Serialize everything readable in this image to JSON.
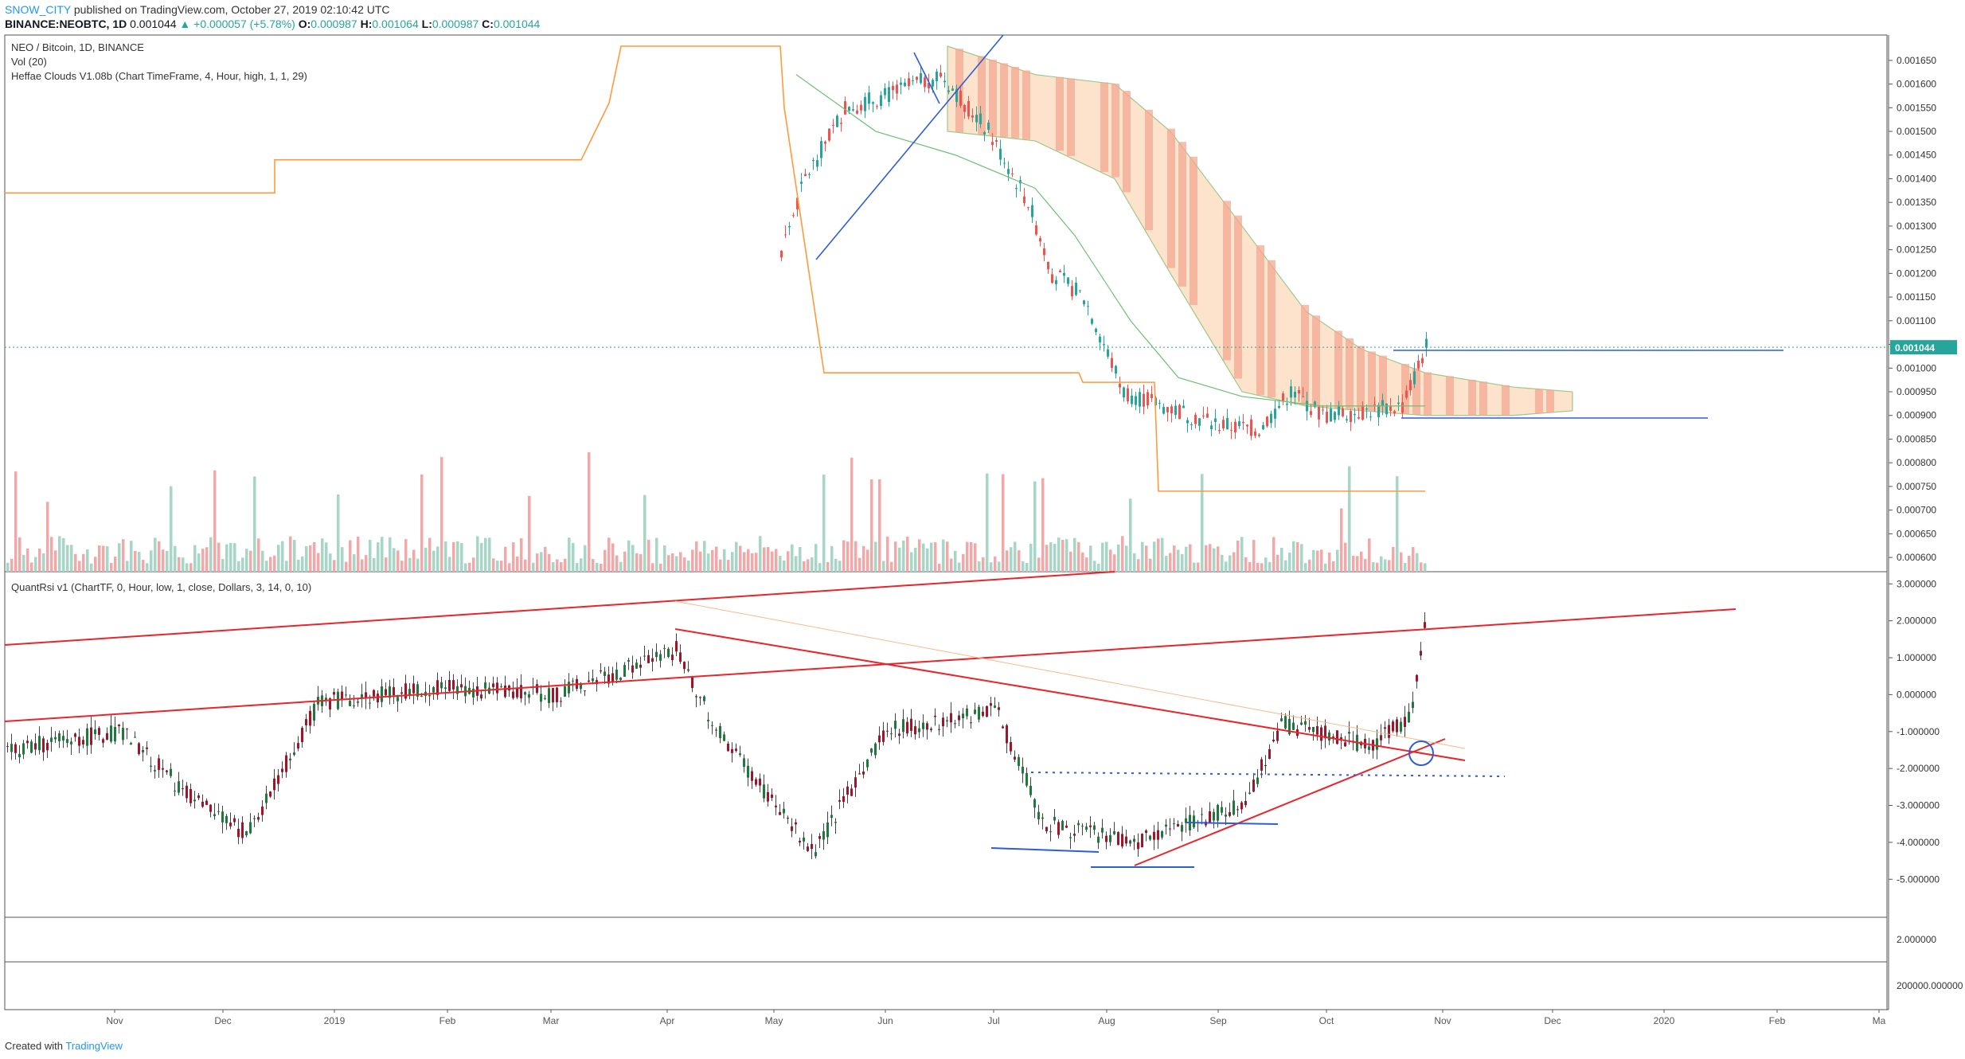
{
  "header": {
    "username": "SNOW_CITY",
    "published": "published on TradingView.com, October 27, 2019 02:10:42 UTC",
    "symbol": "BINANCE:NEOBTC, 1D",
    "last": "0.001044",
    "change": "▲ +0.000057 (+5.78%)",
    "o_label": "O:",
    "o": "0.000987",
    "h_label": "H:",
    "h": "0.001064",
    "l_label": "L:",
    "l": "0.000987",
    "c_label": "C:",
    "c": "0.001044"
  },
  "legend": {
    "title": "NEO / Bitcoin, 1D, BINANCE",
    "vol": "Vol (20)",
    "heffae": "Heffae Clouds V1.08b (Chart TimeFrame, 4, Hour, high, 1, 1, 29)",
    "quant": "QuantRsi v1 (ChartTF, 0, Hour, low, 1, close, Dollars, 3, 14, 0, 10)"
  },
  "footer": {
    "created": "Created with",
    "brand": "TradingView"
  },
  "colors": {
    "up": "#26a69a",
    "down": "#ef5350",
    "vol_up": "#a5d6c6",
    "vol_down": "#f0a8a8",
    "cloud_dark": "#f2a891",
    "cloud_light": "#fde3cc",
    "orange": "#ff9a3c",
    "trend_red": "#e8252b",
    "trend_blue": "#2f5dd6",
    "price_tag": "#26a69a"
  },
  "chart_data": [
    {
      "type": "line",
      "title": "NEO / Bitcoin, 1D, BINANCE",
      "x_ticks": [
        "Nov",
        "Dec",
        "2019",
        "Feb",
        "Mar",
        "Apr",
        "May",
        "Jun",
        "Jul",
        "Aug",
        "Sep",
        "Oct",
        "Nov",
        "Dec",
        "2020",
        "Feb",
        "Ma"
      ],
      "y_ticks": [
        "0.001650",
        "0.001600",
        "0.001550",
        "0.001500",
        "0.001450",
        "0.001400",
        "0.001350",
        "0.001300",
        "0.001250",
        "0.001200",
        "0.001150",
        "0.001100",
        "0.001050",
        "0.001000",
        "0.000950",
        "0.000900",
        "0.000850",
        "0.000800",
        "0.000750",
        "0.000700",
        "0.000650",
        "0.000600"
      ],
      "ylim": [
        0.00058,
        0.00168
      ],
      "last_price_label": "0.001044",
      "last_price": 0.001044,
      "series": [
        {
          "name": "NEO / Bitcoin",
          "x": [
            "2019-05-15",
            "2019-05-25",
            "2019-06-05",
            "2019-06-15",
            "2019-06-25",
            "2019-07-01",
            "2019-07-10",
            "2019-07-20",
            "2019-08-01",
            "2019-08-10",
            "2019-08-20",
            "2019-09-01",
            "2019-09-10",
            "2019-09-20",
            "2019-10-01",
            "2019-10-10",
            "2019-10-20",
            "2019-10-27"
          ],
          "y": [
            0.00125,
            0.0014,
            0.00155,
            0.00158,
            0.00162,
            0.0015,
            0.00135,
            0.0012,
            0.00115,
            0.00095,
            0.00092,
            0.00088,
            0.00087,
            0.00095,
            0.0009,
            0.00091,
            0.00092,
            0.001044
          ]
        }
      ]
    },
    {
      "type": "bar",
      "title": "Vol (20)",
      "note": "volume histogram, unscaled"
    },
    {
      "type": "line",
      "title": "QuantRsi v1 (ChartTF, 0, Hour, low, 1, close, Dollars, 3, 14, 0, 10)",
      "y_ticks": [
        "3.000000",
        "2.000000",
        "1.000000",
        "0.000000",
        "-1.000000",
        "-2.000000",
        "-3.000000",
        "-4.000000",
        "-5.000000"
      ],
      "ylim": [
        -5.9,
        3.2
      ],
      "series": [
        {
          "name": "QuantRsi",
          "x": [
            "2018-10-27",
            "2018-11-15",
            "2018-12-01",
            "2018-12-20",
            "2019-01-05",
            "2019-02-01",
            "2019-03-01",
            "2019-04-02",
            "2019-04-20",
            "2019-05-15",
            "2019-06-10",
            "2019-07-01",
            "2019-07-15",
            "2019-08-05",
            "2019-09-01",
            "2019-09-20",
            "2019-10-10",
            "2019-10-22",
            "2019-10-27"
          ],
          "y": [
            -1.5,
            -1.0,
            -3.0,
            -3.8,
            -0.2,
            0.2,
            0.0,
            1.2,
            -1.0,
            -4.3,
            -1.0,
            -0.4,
            -3.5,
            -4.0,
            -3.0,
            -0.8,
            -1.4,
            -0.6,
            2.0
          ]
        }
      ]
    },
    {
      "type": "line",
      "title": "",
      "y_ticks": [
        "2.000000"
      ],
      "note": "secondary panel"
    },
    {
      "type": "line",
      "title": "",
      "y_ticks": [
        "200000.000000"
      ],
      "note": "tertiary panel"
    }
  ]
}
